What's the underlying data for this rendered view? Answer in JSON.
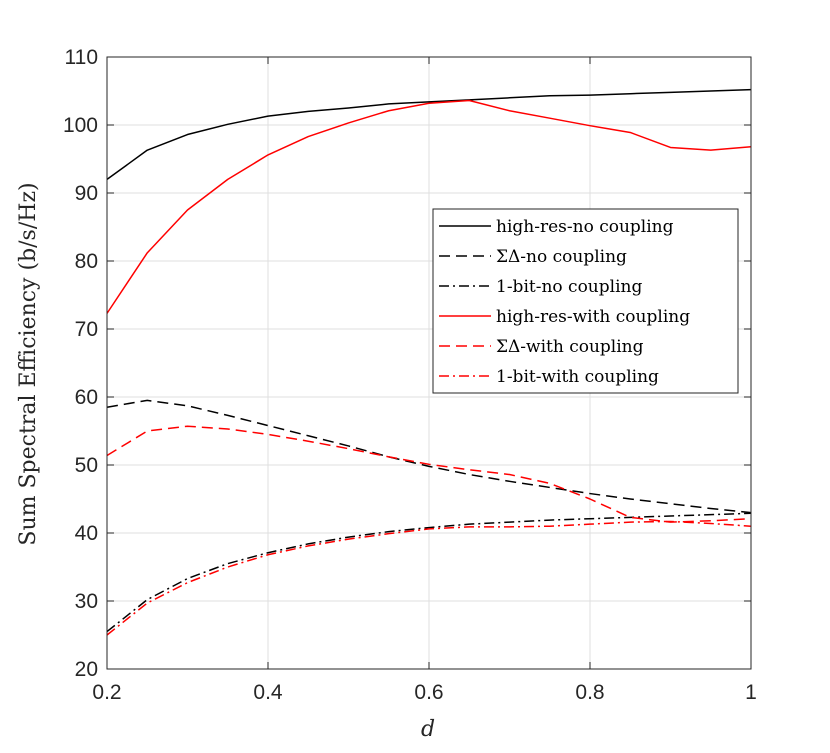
{
  "chart_data": {
    "type": "line",
    "title": "",
    "xlabel": "d",
    "ylabel": "Sum Spectral Efficiency (b/s/Hz)",
    "xlim": [
      0.2,
      1
    ],
    "ylim": [
      20,
      110
    ],
    "xticks": [
      0.2,
      0.4,
      0.6,
      0.8,
      1
    ],
    "xtick_labels": [
      "0.2",
      "0.4",
      "0.6",
      "0.8",
      "1"
    ],
    "yticks": [
      20,
      30,
      40,
      50,
      60,
      70,
      80,
      90,
      100,
      110
    ],
    "ytick_labels": [
      "20",
      "30",
      "40",
      "50",
      "60",
      "70",
      "80",
      "90",
      "100",
      "110"
    ],
    "grid": true,
    "legend_position": "right-middle",
    "x": [
      0.2,
      0.25,
      0.3,
      0.35,
      0.4,
      0.45,
      0.5,
      0.55,
      0.6,
      0.65,
      0.7,
      0.75,
      0.8,
      0.85,
      0.9,
      0.95,
      1.0
    ],
    "series": [
      {
        "name": "high-res-no coupling",
        "color": "#000000",
        "dash": "solid",
        "values": [
          92.0,
          96.3,
          98.6,
          100.1,
          101.3,
          102.0,
          102.5,
          103.1,
          103.4,
          103.7,
          104.0,
          104.3,
          104.4,
          104.6,
          104.8,
          105.0,
          105.2
        ]
      },
      {
        "name": "ΣΔ-no coupling",
        "color": "#000000",
        "dash": "dashed",
        "values": [
          58.5,
          59.5,
          58.7,
          57.3,
          55.8,
          54.3,
          52.8,
          51.2,
          49.8,
          48.6,
          47.6,
          46.7,
          45.8,
          45.0,
          44.3,
          43.6,
          43.0
        ]
      },
      {
        "name": "1-bit-no coupling",
        "color": "#000000",
        "dash": "dashdot",
        "values": [
          25.5,
          30.2,
          33.3,
          35.5,
          37.1,
          38.4,
          39.4,
          40.2,
          40.8,
          41.3,
          41.6,
          41.9,
          42.1,
          42.3,
          42.5,
          42.7,
          42.9
        ]
      },
      {
        "name": "high-res-with coupling",
        "color": "#ff0000",
        "dash": "solid",
        "values": [
          72.3,
          81.2,
          87.5,
          92.0,
          95.6,
          98.3,
          100.3,
          102.1,
          103.2,
          103.6,
          102.1,
          101.0,
          99.9,
          98.9,
          96.7,
          96.3,
          96.8
        ]
      },
      {
        "name": "ΣΔ-with coupling",
        "color": "#ff0000",
        "dash": "dashed",
        "values": [
          51.4,
          55.0,
          55.7,
          55.3,
          54.5,
          53.5,
          52.4,
          51.2,
          50.1,
          49.3,
          48.6,
          47.3,
          45.0,
          42.3,
          41.6,
          41.8,
          42.1
        ]
      },
      {
        "name": "1-bit-with coupling",
        "color": "#ff0000",
        "dash": "dashdot",
        "values": [
          25.0,
          29.7,
          32.7,
          35.0,
          36.8,
          38.1,
          39.1,
          39.9,
          40.6,
          40.9,
          40.9,
          41.0,
          41.3,
          41.6,
          41.7,
          41.4,
          41.0
        ]
      }
    ]
  }
}
